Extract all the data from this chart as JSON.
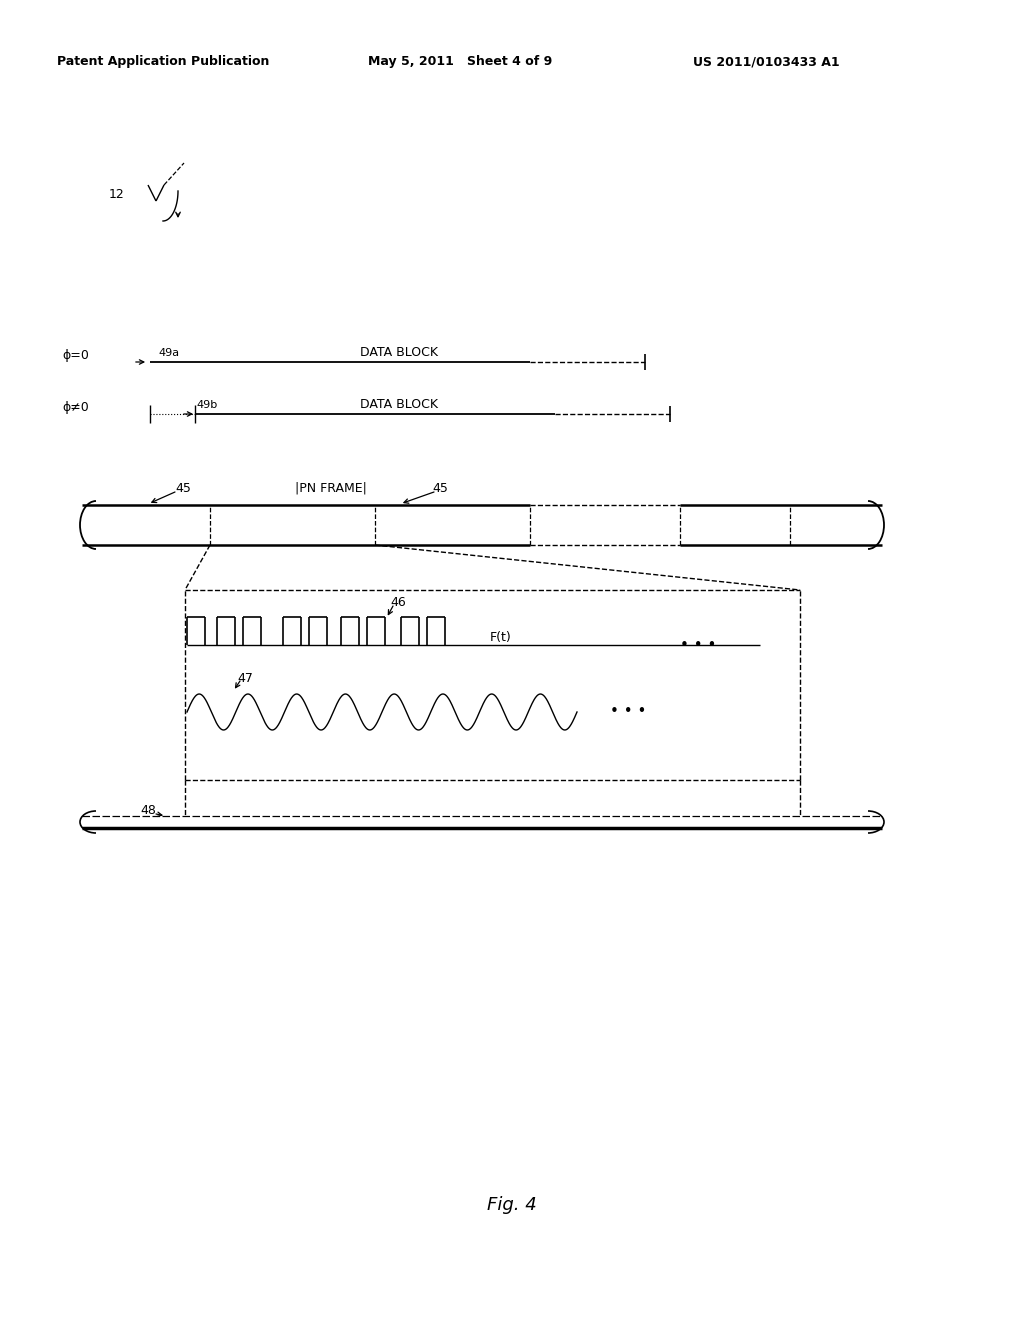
{
  "bg_color": "#ffffff",
  "header_left": "Patent Application Publication",
  "header_mid": "May 5, 2011   Sheet 4 of 9",
  "header_right": "US 2011/0103433 A1",
  "fig_label": "Fig. 4",
  "line_color": "#000000"
}
